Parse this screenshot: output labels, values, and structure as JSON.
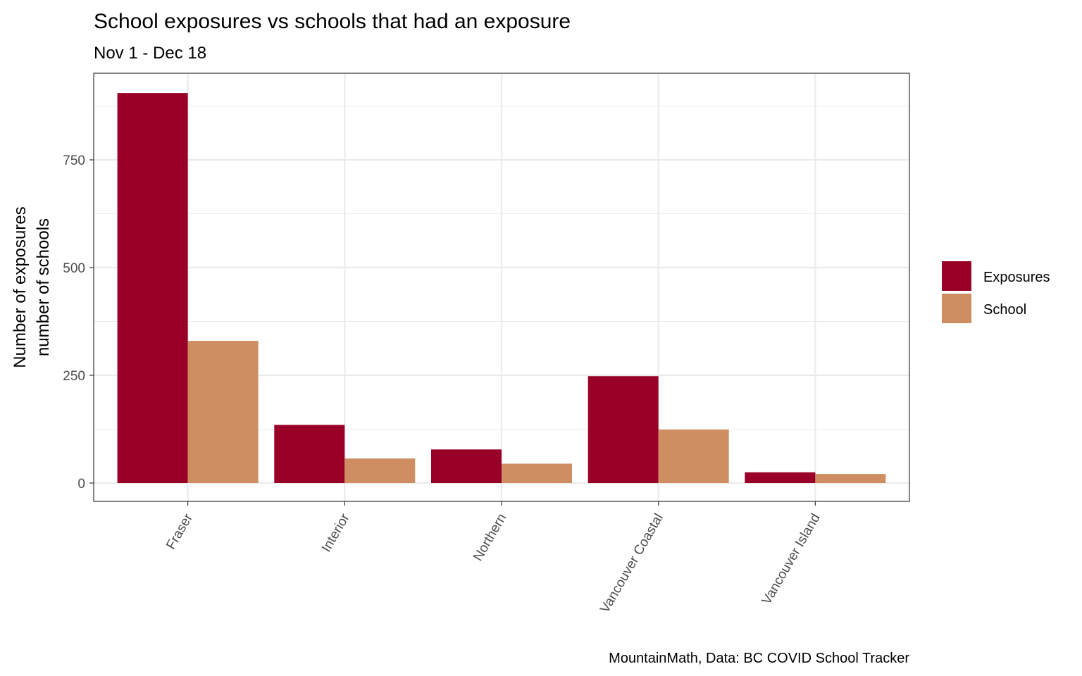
{
  "chart_data": {
    "type": "bar",
    "title": "School exposures vs schools that had an exposure",
    "subtitle": "Nov 1 - Dec 18",
    "ylabel_line1": "Number of exposures",
    "ylabel_line2": "number of schools",
    "xlabel": "",
    "caption": "MountainMath, Data: BC COVID School Tracker",
    "categories": [
      "Fraser",
      "Interior",
      "Northern",
      "Vancouver Coastal",
      "Vancouver Island"
    ],
    "series": [
      {
        "name": "Exposures",
        "color": "#990028",
        "values": [
          905,
          135,
          78,
          248,
          25
        ]
      },
      {
        "name": "School",
        "color": "#cf8d62",
        "values": [
          330,
          57,
          45,
          124,
          21
        ]
      }
    ],
    "ylim": [
      -44,
      955
    ],
    "yticks": [
      0,
      250,
      500,
      750
    ],
    "ytick_labels": [
      "0",
      "250",
      "500",
      "750"
    ],
    "grid": true,
    "legend_position": "right"
  }
}
